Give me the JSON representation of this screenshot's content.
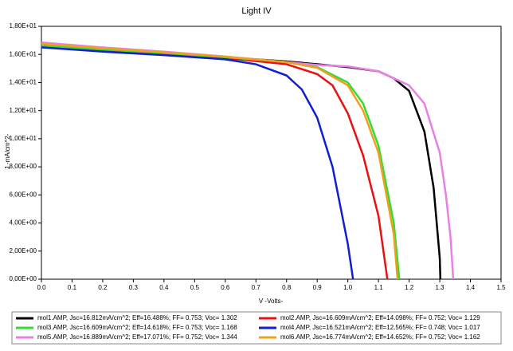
{
  "chart_data": {
    "type": "line",
    "title": "Light IV",
    "x_label": "V -Volts-",
    "y_label": "J -mA/cm^2-",
    "xlim": [
      0,
      1.5
    ],
    "ylim": [
      0,
      18
    ],
    "xticks": [
      {
        "value": 0,
        "label": "0.0"
      },
      0.1,
      0.2,
      0.3,
      0.4,
      0.5,
      0.6,
      0.7,
      0.8,
      0.9,
      {
        "value": 1,
        "label": "1.0"
      },
      1.1,
      1.2,
      1.3,
      1.4,
      1.5
    ],
    "yticks": [
      {
        "value": 0,
        "label": "0,00E+00"
      },
      {
        "value": 2,
        "label": "2,00E+00"
      },
      {
        "value": 4,
        "label": "4,00E+00"
      },
      {
        "value": 6,
        "label": "6,00E+00"
      },
      {
        "value": 8,
        "label": "8,00E+00"
      },
      {
        "value": 10,
        "label": "1,00E+01"
      },
      {
        "value": 12,
        "label": "1,20E+01"
      },
      {
        "value": 14,
        "label": "1,40E+01"
      },
      {
        "value": 16,
        "label": "1,60E+01"
      },
      {
        "value": 18,
        "label": "1,80E+01"
      }
    ],
    "series": [
      {
        "name": "mol1.AMP, Jsc=16.812mA/cm^2; Eff=16.488%; FF= 0.753; Voc= 1.302",
        "color": "#000000",
        "x": [
          0,
          0.2,
          0.4,
          0.6,
          0.8,
          0.9,
          1.0,
          1.1,
          1.15,
          1.2,
          1.25,
          1.28,
          1.3,
          1.302
        ],
        "values": [
          16.6,
          16.35,
          16.1,
          15.8,
          15.5,
          15.3,
          15.1,
          14.8,
          14.3,
          13.4,
          10.5,
          6.5,
          1.5,
          0
        ]
      },
      {
        "name": "mol2.AMP, Jsc=16.609mA/cm^2; Eff=14.098%; FF= 0.752; Voc= 1.129",
        "color": "#e81010",
        "x": [
          0,
          0.2,
          0.4,
          0.6,
          0.8,
          0.9,
          0.95,
          1.0,
          1.05,
          1.1,
          1.129
        ],
        "values": [
          16.55,
          16.3,
          16.05,
          15.75,
          15.3,
          14.6,
          13.8,
          11.8,
          8.8,
          4.5,
          0
        ]
      },
      {
        "name": "mol3.AMP, Jsc=16.609mA/cm^2; Eff=14.618%; FF= 0.753; Voc= 1.168",
        "color": "#33dd33",
        "x": [
          0,
          0.2,
          0.4,
          0.6,
          0.8,
          0.9,
          1.0,
          1.05,
          1.1,
          1.15,
          1.168
        ],
        "values": [
          16.6,
          16.35,
          16.1,
          15.8,
          15.45,
          15.1,
          14.0,
          12.5,
          9.5,
          4.0,
          0
        ]
      },
      {
        "name": "mol4.AMP, Jsc=16.521mA/cm^2; Eff=12.565%; FF= 0.748; Voc= 1.017",
        "color": "#1020d0",
        "x": [
          0,
          0.2,
          0.4,
          0.6,
          0.7,
          0.8,
          0.85,
          0.9,
          0.95,
          1.0,
          1.017
        ],
        "values": [
          16.5,
          16.2,
          15.95,
          15.65,
          15.3,
          14.5,
          13.5,
          11.5,
          8.0,
          2.5,
          0
        ]
      },
      {
        "name": "mol5.AMP, Jsc=16.889mA/cm^2; Eff=17.071%; FF= 0.752; Voc= 1.344",
        "color": "#e880e8",
        "x": [
          0,
          0.2,
          0.4,
          0.6,
          0.8,
          0.9,
          1.0,
          1.1,
          1.2,
          1.25,
          1.3,
          1.32,
          1.335,
          1.344
        ],
        "values": [
          16.85,
          16.5,
          16.2,
          15.85,
          15.45,
          15.25,
          15.15,
          14.8,
          13.8,
          12.5,
          9.0,
          6.0,
          3.0,
          0
        ]
      },
      {
        "name": "mol6.AMP, Jsc=16.774mA/cm^2; Eff=14.652%; FF= 0.752; Voc= 1.162",
        "color": "#f0a020",
        "x": [
          0,
          0.2,
          0.4,
          0.6,
          0.8,
          0.9,
          1.0,
          1.05,
          1.1,
          1.15,
          1.162
        ],
        "values": [
          16.75,
          16.45,
          16.15,
          15.85,
          15.45,
          15.05,
          13.8,
          12.0,
          9.0,
          3.2,
          0
        ]
      }
    ]
  }
}
